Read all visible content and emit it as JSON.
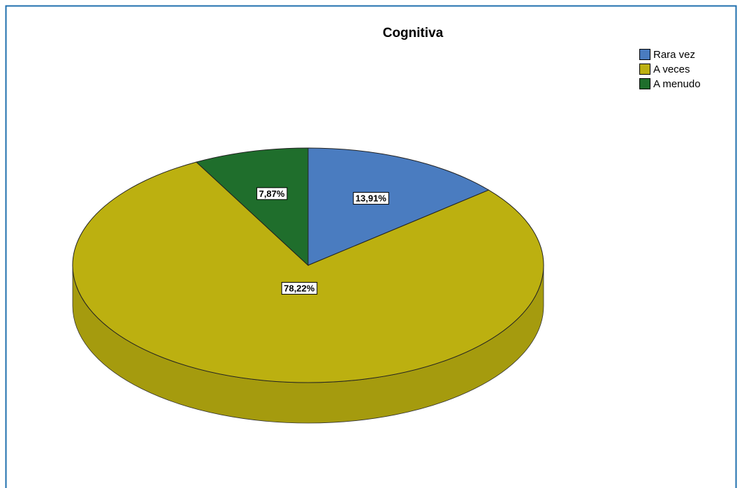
{
  "chart_data": {
    "type": "pie",
    "title": "Cognitiva",
    "categories": [
      "Rara vez",
      "A veces",
      "A menudo"
    ],
    "values": [
      13.91,
      78.22,
      7.87
    ],
    "value_labels": [
      "13,91%",
      "78,22%",
      "7,87%"
    ],
    "colors": [
      "#4a7cc0",
      "#bcb010",
      "#1f6e2c"
    ],
    "legend": "top-right"
  }
}
